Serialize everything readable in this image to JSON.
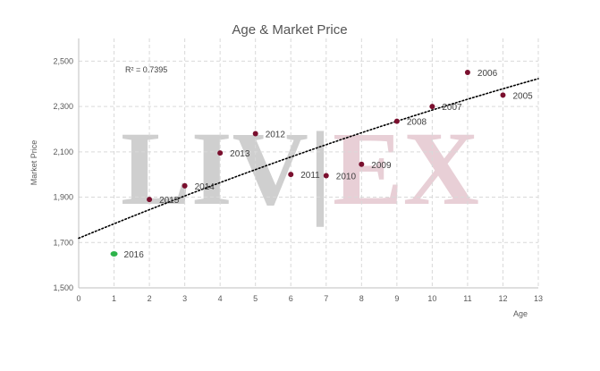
{
  "chart_data": {
    "type": "scatter",
    "title": "Age & Market Price",
    "xlabel": "Age",
    "ylabel": "Market Price",
    "xlim": [
      0,
      13
    ],
    "ylim": [
      1500,
      2600
    ],
    "x_ticks": [
      "0",
      "1",
      "2",
      "3",
      "4",
      "5",
      "6",
      "7",
      "8",
      "9",
      "10",
      "11",
      "12",
      "13"
    ],
    "y_ticks": [
      "1,500",
      "1,700",
      "1,900",
      "2,100",
      "2,300",
      "2,500"
    ],
    "grid": true,
    "legend": "none",
    "points": [
      {
        "x": 1,
        "y": 1650,
        "label": "2016",
        "color": "#2db34a"
      },
      {
        "x": 2,
        "y": 1890,
        "label": "2015",
        "color": "#7a0f2e"
      },
      {
        "x": 3,
        "y": 1950,
        "label": "2014",
        "color": "#7a0f2e"
      },
      {
        "x": 4,
        "y": 2095,
        "label": "2013",
        "color": "#7a0f2e"
      },
      {
        "x": 5,
        "y": 2180,
        "label": "2012",
        "color": "#7a0f2e"
      },
      {
        "x": 6,
        "y": 2000,
        "label": "2011",
        "color": "#7a0f2e"
      },
      {
        "x": 7,
        "y": 1995,
        "label": "2010",
        "color": "#7a0f2e"
      },
      {
        "x": 8,
        "y": 2045,
        "label": "2009",
        "color": "#7a0f2e"
      },
      {
        "x": 9,
        "y": 2235,
        "label": "2008",
        "color": "#7a0f2e"
      },
      {
        "x": 10,
        "y": 2300,
        "label": "2007",
        "color": "#7a0f2e"
      },
      {
        "x": 11,
        "y": 2450,
        "label": "2006",
        "color": "#7a0f2e"
      },
      {
        "x": 12,
        "y": 2350,
        "label": "2005",
        "color": "#7a0f2e"
      }
    ],
    "trendline": {
      "type": "polynomial-2",
      "style": "dotted",
      "color": "#000000",
      "r_squared_label": "R² = 0.7395"
    },
    "watermark": {
      "text_left": "LIV",
      "separator": "|",
      "text_right": "EX",
      "color_left": "#cfcfcf",
      "color_right": "#e8cfd6"
    },
    "gridline_color": "#d9d9d9",
    "axis_color": "#bfbfbf"
  }
}
